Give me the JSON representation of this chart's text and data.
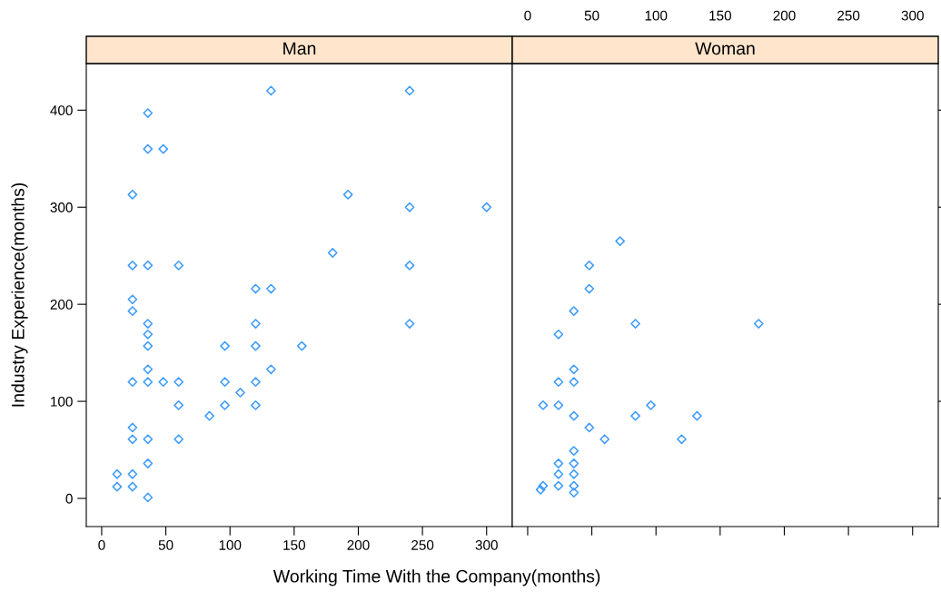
{
  "chart_data": [
    {
      "type": "scatter",
      "title": "Man",
      "xlabel": "Working Time With the Company(months)",
      "ylabel": "Industry Experience(months)",
      "marker": "diamond",
      "grid": false,
      "xlim": [
        -12,
        320
      ],
      "ylim": [
        -29,
        448
      ],
      "xticks": [
        0,
        50,
        100,
        150,
        200,
        250,
        300
      ],
      "yticks": [
        0,
        100,
        200,
        300,
        400
      ],
      "series": [
        {
          "color": "#3d9bff",
          "x": [
            132,
            240,
            36,
            36,
            48,
            24,
            192,
            240,
            300,
            180,
            24,
            36,
            60,
            240,
            120,
            132,
            24,
            24,
            36,
            120,
            240,
            36,
            36,
            96,
            120,
            156,
            36,
            132,
            24,
            36,
            48,
            60,
            96,
            120,
            108,
            60,
            96,
            120,
            84,
            24,
            24,
            36,
            60,
            36,
            12,
            24,
            12,
            24,
            36
          ],
          "values": [
            420,
            420,
            397,
            360,
            360,
            313,
            313,
            300,
            300,
            253,
            240,
            240,
            240,
            240,
            216,
            216,
            205,
            193,
            180,
            180,
            180,
            169,
            157,
            157,
            157,
            157,
            133,
            133,
            120,
            120,
            120,
            120,
            120,
            120,
            109,
            96,
            96,
            96,
            85,
            73,
            61,
            61,
            61,
            36,
            25,
            25,
            12,
            12,
            1
          ]
        }
      ]
    },
    {
      "type": "scatter",
      "title": "Woman",
      "marker": "diamond",
      "grid": false,
      "tick_labels": "x",
      "xlim": [
        -12,
        320
      ],
      "ylim": [
        -29,
        448
      ],
      "xticks": [
        0,
        50,
        100,
        150,
        200,
        250,
        300
      ],
      "yticks": [
        0,
        100,
        200,
        300,
        400
      ],
      "series": [
        {
          "color": "#3d9bff",
          "x": [
            72,
            48,
            48,
            36,
            84,
            180,
            24,
            36,
            24,
            36,
            12,
            24,
            96,
            36,
            84,
            132,
            48,
            60,
            120,
            36,
            24,
            36,
            24,
            36,
            10,
            12,
            24,
            36,
            36
          ],
          "values": [
            265,
            240,
            216,
            193,
            180,
            180,
            169,
            133,
            120,
            120,
            96,
            96,
            96,
            85,
            85,
            85,
            73,
            61,
            61,
            49,
            36,
            36,
            25,
            25,
            9,
            13,
            13,
            13,
            6
          ]
        }
      ]
    }
  ]
}
